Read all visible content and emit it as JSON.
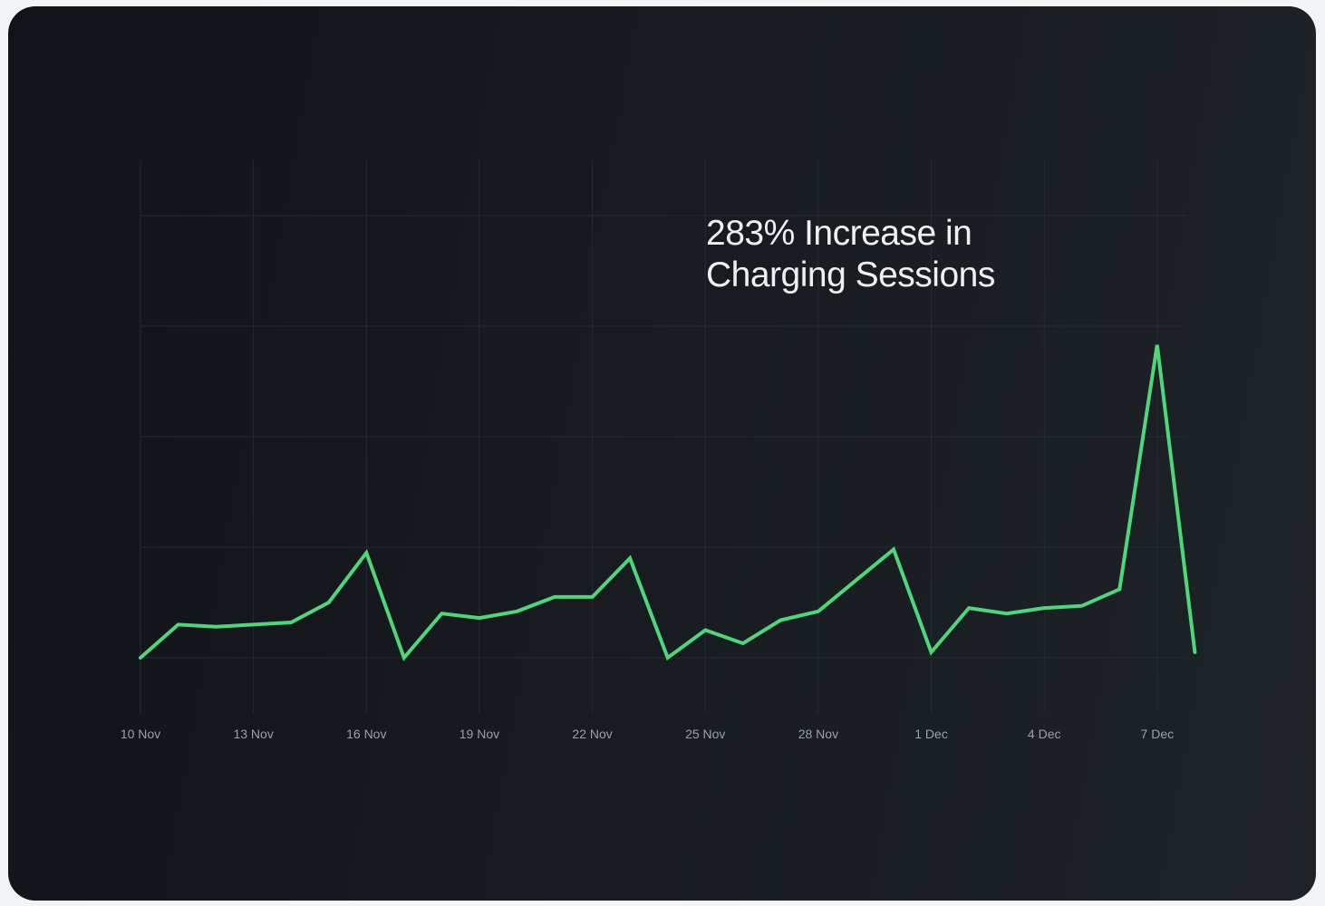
{
  "chart_data": {
    "type": "line",
    "title": "283% Increase in\nCharging Sessions",
    "xlabel": "",
    "ylabel": "",
    "x": [
      "10 Nov",
      "11 Nov",
      "12 Nov",
      "13 Nov",
      "14 Nov",
      "15 Nov",
      "16 Nov",
      "17 Nov",
      "18 Nov",
      "19 Nov",
      "20 Nov",
      "21 Nov",
      "22 Nov",
      "23 Nov",
      "24 Nov",
      "25 Nov",
      "26 Nov",
      "27 Nov",
      "28 Nov",
      "29 Nov",
      "30 Nov",
      "1 Dec",
      "2 Dec",
      "3 Dec",
      "4 Dec",
      "5 Dec",
      "6 Dec",
      "7 Dec",
      "8 Dec"
    ],
    "tick_labels": [
      "10 Nov",
      "13 Nov",
      "16 Nov",
      "19 Nov",
      "22 Nov",
      "25 Nov",
      "28 Nov",
      "1 Dec",
      "4 Dec",
      "7 Dec"
    ],
    "series": [
      {
        "values": [
          1.0,
          1.3,
          1.28,
          1.3,
          1.32,
          1.5,
          1.95,
          1.0,
          1.4,
          1.36,
          1.42,
          1.55,
          1.55,
          1.9,
          1.0,
          1.25,
          1.13,
          1.34,
          1.42,
          1.7,
          1.98,
          1.05,
          1.45,
          1.4,
          1.45,
          1.47,
          1.62,
          3.83,
          1.05
        ]
      }
    ],
    "ylim": [
      0.5,
      5.5
    ],
    "grid": true,
    "line_color": "#4cd876",
    "grid_color": "#262b31"
  }
}
